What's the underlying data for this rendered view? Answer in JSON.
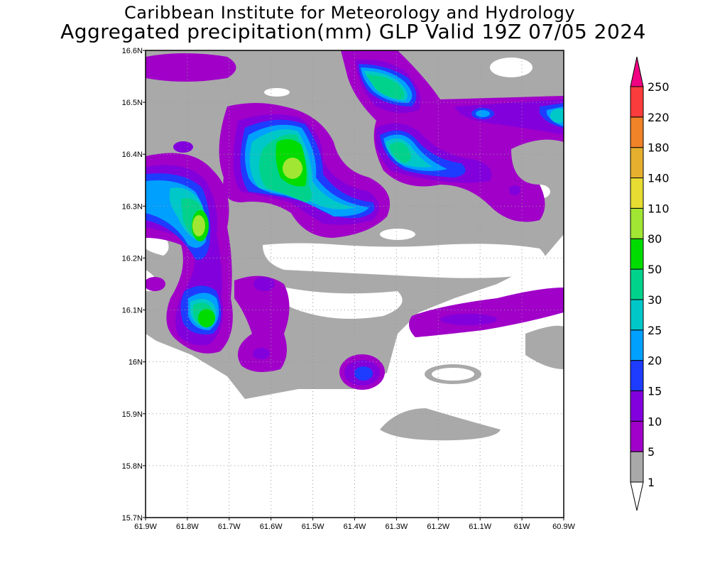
{
  "title": {
    "line1": "Caribbean Institute for Meteorology and Hydrology",
    "line2": "Aggregated precipitation(mm) GLP Valid 19Z 07/05 2024"
  },
  "map": {
    "lon_labels": [
      "61.9W",
      "61.8W",
      "61.7W",
      "61.6W",
      "61.5W",
      "61.4W",
      "61.3W",
      "61.2W",
      "61.1W",
      "61W",
      "60.9W"
    ],
    "lat_labels": [
      "15.7N",
      "15.8N",
      "15.9N",
      "16N",
      "16.1N",
      "16.2N",
      "16.3N",
      "16.4N",
      "16.5N",
      "16.6N"
    ],
    "lon_range": [
      -61.9,
      -60.9
    ],
    "lat_range": [
      15.7,
      16.6
    ]
  },
  "colorbar": {
    "levels": [
      "1",
      "5",
      "10",
      "15",
      "20",
      "25",
      "30",
      "50",
      "80",
      "110",
      "140",
      "180",
      "220",
      "250"
    ],
    "colors": [
      "#a9a9a9",
      "#a000c8",
      "#8200dc",
      "#1e3cff",
      "#00a0ff",
      "#00c8c8",
      "#00d28c",
      "#00dc00",
      "#a0e632",
      "#e6dc32",
      "#e6af2d",
      "#f08228",
      "#fa3c3c"
    ],
    "under_color": "#ffffff",
    "over_color": "#f00082"
  }
}
